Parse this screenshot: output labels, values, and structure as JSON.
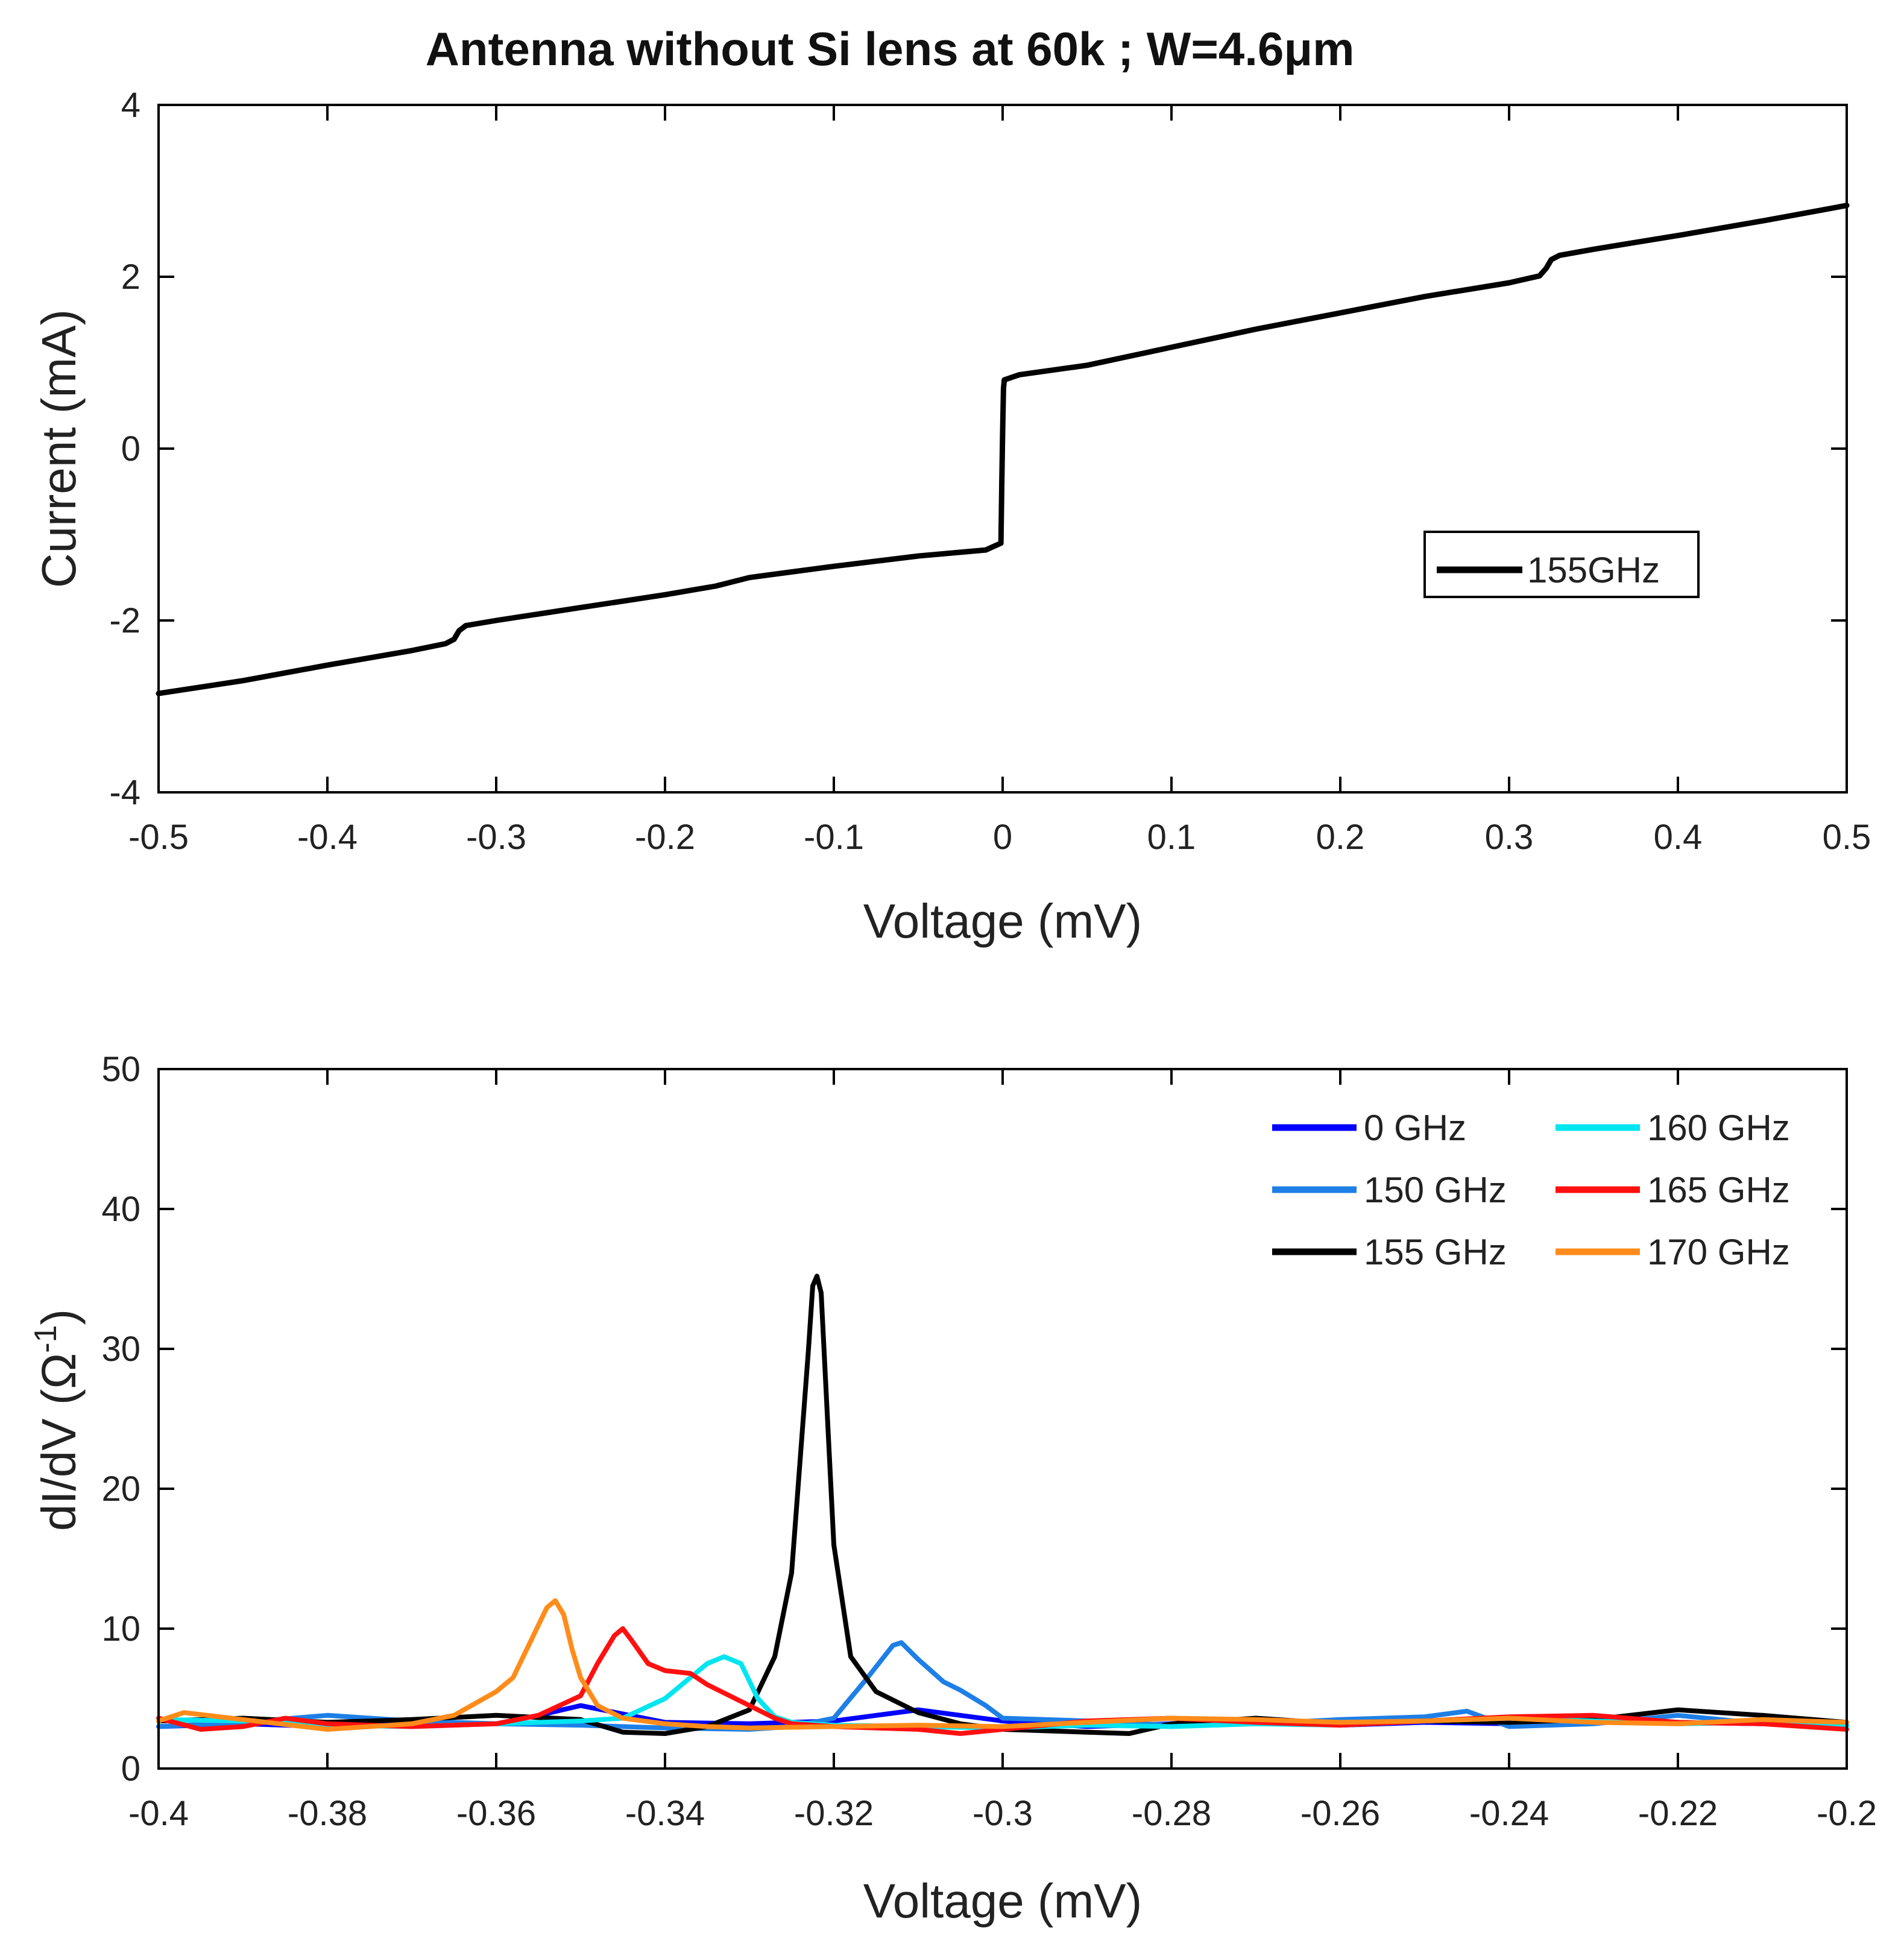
{
  "figure_title": "Antenna without Si lens at 60k ; W=4.6μm",
  "chart_data": [
    {
      "type": "line",
      "title": "Antenna without Si lens at 60k ; W=4.6μm",
      "xlabel": "Voltage (mV)",
      "ylabel": "Current (mA)",
      "xlim": [
        -0.5,
        0.5
      ],
      "ylim": [
        -4,
        4
      ],
      "xticks": [
        -0.5,
        -0.4,
        -0.3,
        -0.2,
        -0.1,
        0,
        0.1,
        0.2,
        0.3,
        0.4,
        0.5
      ],
      "yticks": [
        -4,
        -2,
        0,
        2,
        4
      ],
      "xtick_labels": [
        "-0.5",
        "-0.4",
        "-0.3",
        "-0.2",
        "-0.1",
        "0",
        "0.1",
        "0.2",
        "0.3",
        "0.4",
        "0.5"
      ],
      "ytick_labels": [
        "-4",
        "-2",
        "0",
        "2",
        "4"
      ],
      "grid": false,
      "legend_position": "right",
      "series": [
        {
          "name": "155GHz",
          "color": "#000000",
          "x": [
            -0.5,
            -0.45,
            -0.4,
            -0.35,
            -0.33,
            -0.325,
            -0.322,
            -0.318,
            -0.3,
            -0.25,
            -0.2,
            -0.17,
            -0.15,
            -0.1,
            -0.05,
            -0.01,
            -0.001,
            -0.0005,
            0.0,
            0.0005,
            0.001,
            0.01,
            0.05,
            0.1,
            0.15,
            0.2,
            0.25,
            0.3,
            0.318,
            0.322,
            0.325,
            0.33,
            0.35,
            0.4,
            0.45,
            0.5
          ],
          "y": [
            -2.85,
            -2.7,
            -2.52,
            -2.35,
            -2.27,
            -2.22,
            -2.12,
            -2.06,
            -2.0,
            -1.85,
            -1.7,
            -1.6,
            -1.5,
            -1.37,
            -1.25,
            -1.18,
            -1.1,
            -0.4,
            0.2,
            0.7,
            0.8,
            0.86,
            0.97,
            1.18,
            1.39,
            1.58,
            1.77,
            1.93,
            2.01,
            2.1,
            2.2,
            2.25,
            2.32,
            2.48,
            2.65,
            2.83
          ]
        }
      ]
    },
    {
      "type": "line",
      "title": "",
      "xlabel": "Voltage (mV)",
      "ylabel": "dI/dV (Ω^-1)",
      "ylabel_text": "dI/dV (Ω",
      "ylabel_sup": "-1",
      "ylabel_close": ")",
      "xlim": [
        -0.4,
        -0.2
      ],
      "ylim": [
        0,
        50
      ],
      "xticks": [
        -0.4,
        -0.38,
        -0.36,
        -0.34,
        -0.32,
        -0.3,
        -0.28,
        -0.26,
        -0.24,
        -0.22,
        -0.2
      ],
      "yticks": [
        0,
        10,
        20,
        30,
        40,
        50
      ],
      "xtick_labels": [
        "-0.4",
        "-0.38",
        "-0.36",
        "-0.34",
        "-0.32",
        "-0.3",
        "-0.28",
        "-0.26",
        "-0.24",
        "-0.22",
        "-0.2"
      ],
      "ytick_labels": [
        "0",
        "10",
        "20",
        "30",
        "40",
        "50"
      ],
      "grid": false,
      "legend_position": "top-right",
      "series": [
        {
          "name": "0 GHz",
          "color": "#0000ff",
          "x": [
            -0.4,
            -0.39,
            -0.38,
            -0.37,
            -0.36,
            -0.355,
            -0.35,
            -0.345,
            -0.34,
            -0.33,
            -0.32,
            -0.31,
            -0.3,
            -0.29,
            -0.28,
            -0.27,
            -0.26,
            -0.25,
            -0.24,
            -0.23,
            -0.22,
            -0.21,
            -0.2
          ],
          "y": [
            3.0,
            3.2,
            3.0,
            3.3,
            3.2,
            3.8,
            4.5,
            3.9,
            3.3,
            3.2,
            3.4,
            4.2,
            3.4,
            3.0,
            3.2,
            3.4,
            3.1,
            3.3,
            3.2,
            3.4,
            3.3,
            3.2,
            3.3
          ]
        },
        {
          "name": "150 GHz",
          "color": "#1e7fe6",
          "x": [
            -0.4,
            -0.39,
            -0.38,
            -0.37,
            -0.36,
            -0.35,
            -0.34,
            -0.33,
            -0.325,
            -0.32,
            -0.316,
            -0.313,
            -0.312,
            -0.31,
            -0.307,
            -0.305,
            -0.302,
            -0.3,
            -0.29,
            -0.28,
            -0.27,
            -0.26,
            -0.25,
            -0.245,
            -0.24,
            -0.23,
            -0.22,
            -0.21,
            -0.2
          ],
          "y": [
            3.0,
            3.3,
            3.8,
            3.4,
            3.2,
            3.1,
            2.9,
            2.8,
            3.0,
            3.6,
            6.5,
            8.8,
            9.0,
            7.8,
            6.2,
            5.6,
            4.5,
            3.6,
            3.4,
            3.1,
            3.2,
            3.5,
            3.7,
            4.1,
            3.0,
            3.2,
            3.8,
            3.2,
            3.1
          ]
        },
        {
          "name": "155 GHz",
          "color": "#000000",
          "x": [
            -0.4,
            -0.39,
            -0.38,
            -0.37,
            -0.36,
            -0.35,
            -0.345,
            -0.34,
            -0.335,
            -0.33,
            -0.327,
            -0.325,
            -0.324,
            -0.323,
            -0.3225,
            -0.322,
            -0.3215,
            -0.321,
            -0.32,
            -0.318,
            -0.315,
            -0.31,
            -0.305,
            -0.3,
            -0.29,
            -0.285,
            -0.28,
            -0.27,
            -0.26,
            -0.25,
            -0.24,
            -0.23,
            -0.22,
            -0.21,
            -0.2
          ],
          "y": [
            3.4,
            3.6,
            3.3,
            3.5,
            3.8,
            3.5,
            2.6,
            2.5,
            3.0,
            4.2,
            8.0,
            14.0,
            22.0,
            30.0,
            34.5,
            35.2,
            34.0,
            28.0,
            16.0,
            8.0,
            5.5,
            4.0,
            3.2,
            2.8,
            2.6,
            2.5,
            3.2,
            3.6,
            3.2,
            3.4,
            3.3,
            3.5,
            4.2,
            3.8,
            3.3
          ]
        },
        {
          "name": "160 GHz",
          "color": "#00e5f0",
          "x": [
            -0.4,
            -0.39,
            -0.38,
            -0.37,
            -0.36,
            -0.35,
            -0.345,
            -0.34,
            -0.337,
            -0.335,
            -0.333,
            -0.331,
            -0.329,
            -0.327,
            -0.325,
            -0.32,
            -0.31,
            -0.3,
            -0.29,
            -0.28,
            -0.27,
            -0.26,
            -0.25,
            -0.24,
            -0.23,
            -0.22,
            -0.21,
            -0.2
          ],
          "y": [
            3.5,
            3.4,
            3.1,
            3.0,
            3.2,
            3.4,
            3.6,
            5.0,
            6.5,
            7.5,
            8.0,
            7.5,
            5.0,
            3.7,
            3.3,
            3.1,
            3.0,
            2.9,
            3.1,
            3.0,
            3.2,
            3.1,
            3.4,
            3.6,
            3.4,
            3.2,
            3.3,
            3.0
          ]
        },
        {
          "name": "165 GHz",
          "color": "#ff1010",
          "x": [
            -0.4,
            -0.395,
            -0.39,
            -0.385,
            -0.38,
            -0.37,
            -0.36,
            -0.355,
            -0.35,
            -0.348,
            -0.346,
            -0.345,
            -0.344,
            -0.342,
            -0.34,
            -0.337,
            -0.335,
            -0.33,
            -0.327,
            -0.325,
            -0.32,
            -0.31,
            -0.305,
            -0.3,
            -0.29,
            -0.28,
            -0.27,
            -0.26,
            -0.25,
            -0.24,
            -0.23,
            -0.22,
            -0.21,
            -0.2
          ],
          "y": [
            3.6,
            2.8,
            3.0,
            3.6,
            3.2,
            3.0,
            3.2,
            3.8,
            5.2,
            7.5,
            9.5,
            10.0,
            9.2,
            7.5,
            7.0,
            6.8,
            6.0,
            4.5,
            3.6,
            3.2,
            3.0,
            2.8,
            2.5,
            2.8,
            3.4,
            3.6,
            3.3,
            3.1,
            3.4,
            3.7,
            3.8,
            3.3,
            3.2,
            2.8
          ]
        },
        {
          "name": "170 GHz",
          "color": "#ff8c1a",
          "x": [
            -0.4,
            -0.397,
            -0.39,
            -0.38,
            -0.37,
            -0.365,
            -0.36,
            -0.358,
            -0.356,
            -0.354,
            -0.353,
            -0.352,
            -0.351,
            -0.35,
            -0.348,
            -0.345,
            -0.34,
            -0.335,
            -0.33,
            -0.32,
            -0.31,
            -0.3,
            -0.29,
            -0.28,
            -0.27,
            -0.26,
            -0.25,
            -0.24,
            -0.23,
            -0.22,
            -0.21,
            -0.2
          ],
          "y": [
            3.4,
            4.0,
            3.5,
            2.8,
            3.2,
            3.8,
            5.5,
            6.5,
            9.0,
            11.5,
            12.0,
            11.0,
            8.5,
            6.5,
            4.5,
            3.6,
            3.2,
            3.0,
            2.9,
            3.0,
            3.1,
            3.0,
            3.3,
            3.6,
            3.5,
            3.3,
            3.4,
            3.6,
            3.3,
            3.2,
            3.5,
            3.3
          ]
        }
      ]
    }
  ]
}
